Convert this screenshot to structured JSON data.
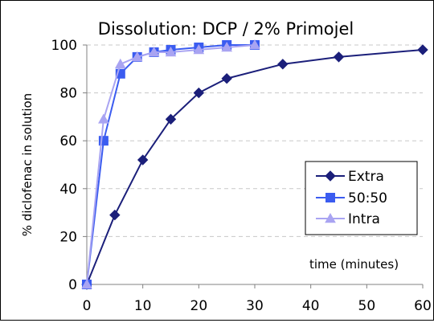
{
  "chart_data": {
    "type": "line",
    "title": "Dissolution: DCP / 2% Primojel",
    "xlabel": "",
    "ylabel": "% diclofenac in solution",
    "annotation": "time (minutes)",
    "xlim": [
      0,
      60
    ],
    "ylim": [
      0,
      100
    ],
    "xticks": [
      0,
      10,
      20,
      30,
      40,
      50,
      60
    ],
    "yticks": [
      0,
      20,
      40,
      60,
      80,
      100
    ],
    "grid": "horizontal dashed",
    "legend_position": "right",
    "series": [
      {
        "name": "Extra",
        "color": "#1b1f7a",
        "marker": "diamond",
        "x": [
          0,
          5,
          10,
          15,
          20,
          25,
          35,
          45,
          60
        ],
        "y": [
          0,
          29,
          52,
          69,
          80,
          86,
          92,
          95,
          98
        ]
      },
      {
        "name": "50:50",
        "color": "#3b5cf0",
        "marker": "square",
        "x": [
          0,
          3,
          6,
          9,
          12,
          15,
          20,
          25,
          30
        ],
        "y": [
          0,
          60,
          88,
          95,
          97,
          98,
          99,
          100,
          100
        ]
      },
      {
        "name": "Intra",
        "color": "#a9a4f2",
        "marker": "triangle",
        "x": [
          0,
          3,
          6,
          9,
          12,
          15,
          20,
          25,
          30
        ],
        "y": [
          0,
          69,
          92,
          95,
          97,
          97,
          98,
          99,
          100
        ]
      }
    ]
  }
}
